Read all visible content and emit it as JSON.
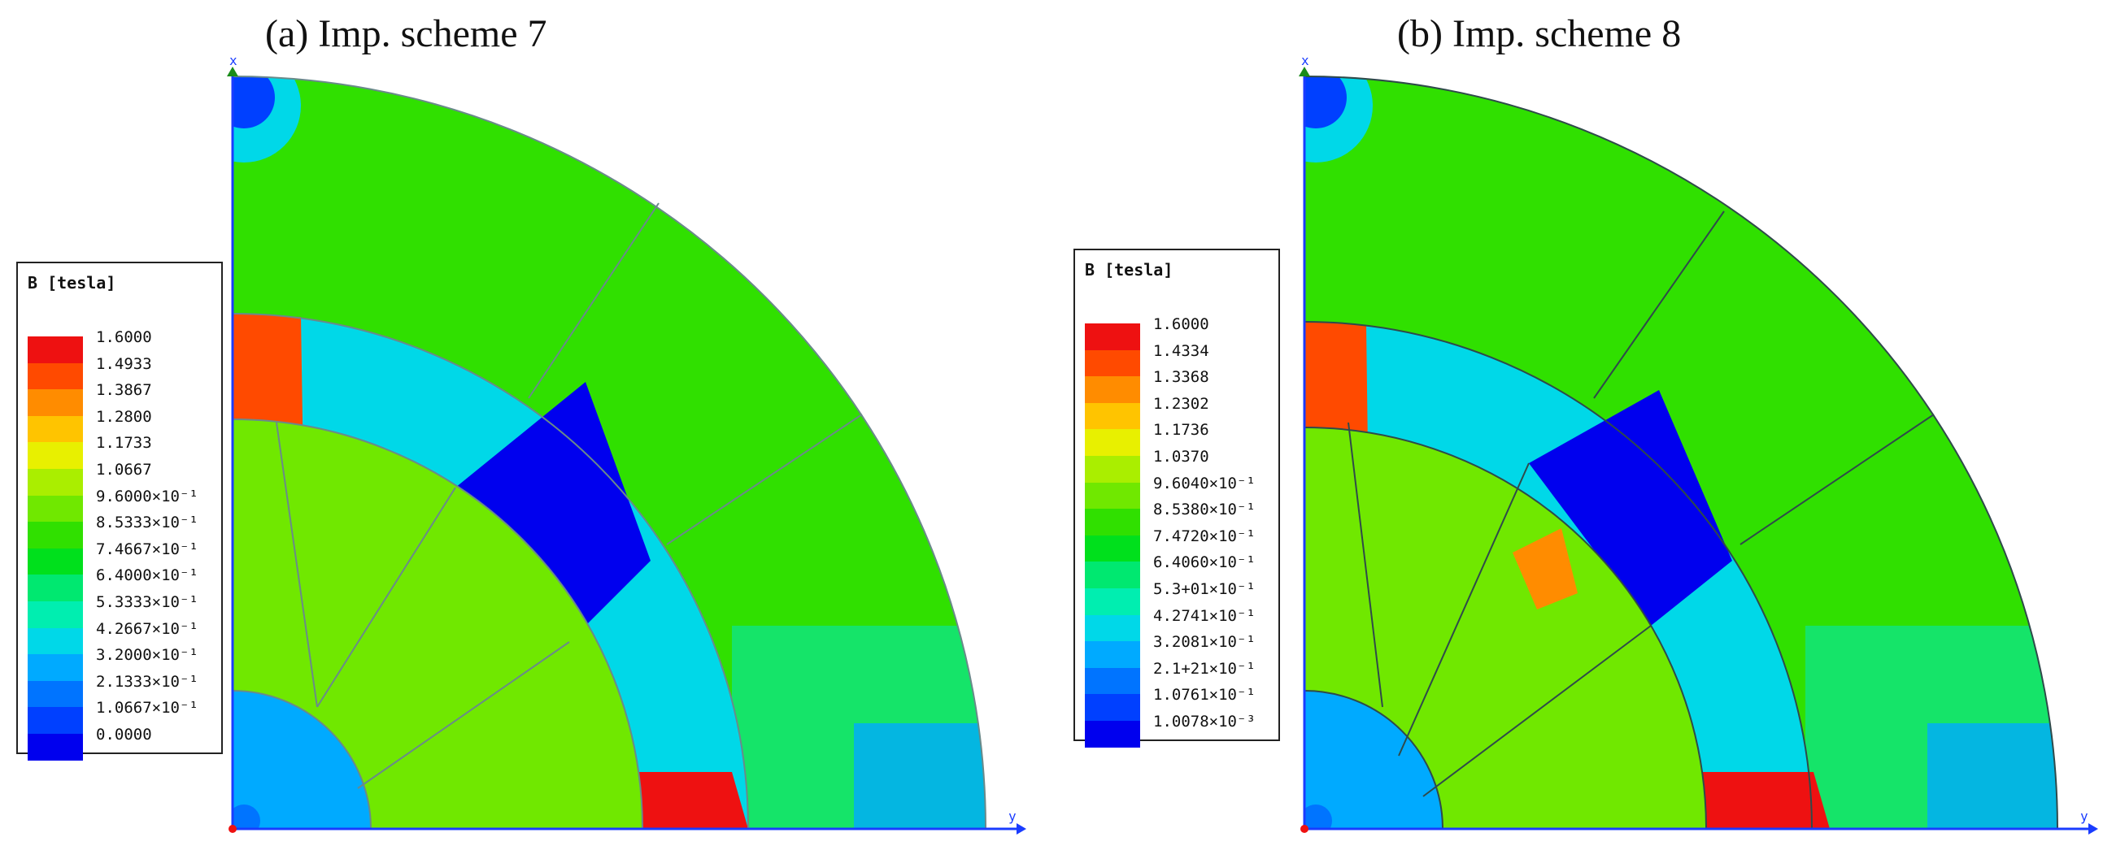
{
  "panels": [
    {
      "id": "a",
      "title": "(a) Imp. scheme 7",
      "axis_x": "x",
      "axis_y": "y",
      "legend": {
        "title": "B [tesla]",
        "labels": [
          "1.6000",
          "1.4933",
          "1.3867",
          "1.2800",
          "1.1733",
          "1.0667",
          "9.6000×10⁻¹",
          "8.5333×10⁻¹",
          "7.4667×10⁻¹",
          "6.4000×10⁻¹",
          "5.3333×10⁻¹",
          "4.2667×10⁻¹",
          "3.2000×10⁻¹",
          "2.1333×10⁻¹",
          "1.0667×10⁻¹",
          "0.0000"
        ]
      }
    },
    {
      "id": "b",
      "title": "(b) Imp. scheme 8",
      "axis_x": "x",
      "axis_y": "y",
      "legend": {
        "title": "B [tesla]",
        "labels": [
          "1.6000",
          "1.4334",
          "1.3368",
          "1.2302",
          "1.1736",
          "1.0370",
          "9.6040×10⁻¹",
          "8.5380×10⁻¹",
          "7.4720×10⁻¹",
          "6.4060×10⁻¹",
          "5.3+01×10⁻¹",
          "4.2741×10⁻¹",
          "3.2081×10⁻¹",
          "2.1+21×10⁻¹",
          "1.0761×10⁻¹",
          "1.0078×10⁻³"
        ]
      }
    }
  ],
  "colormap": [
    "#ee1111",
    "#ff4a00",
    "#ff8c00",
    "#ffc400",
    "#e8f000",
    "#aaee00",
    "#70e800",
    "#30e000",
    "#00e01c",
    "#00e870",
    "#00eeb0",
    "#00d8e8",
    "#00aaff",
    "#0074ff",
    "#0040ff",
    "#0000ee"
  ]
}
